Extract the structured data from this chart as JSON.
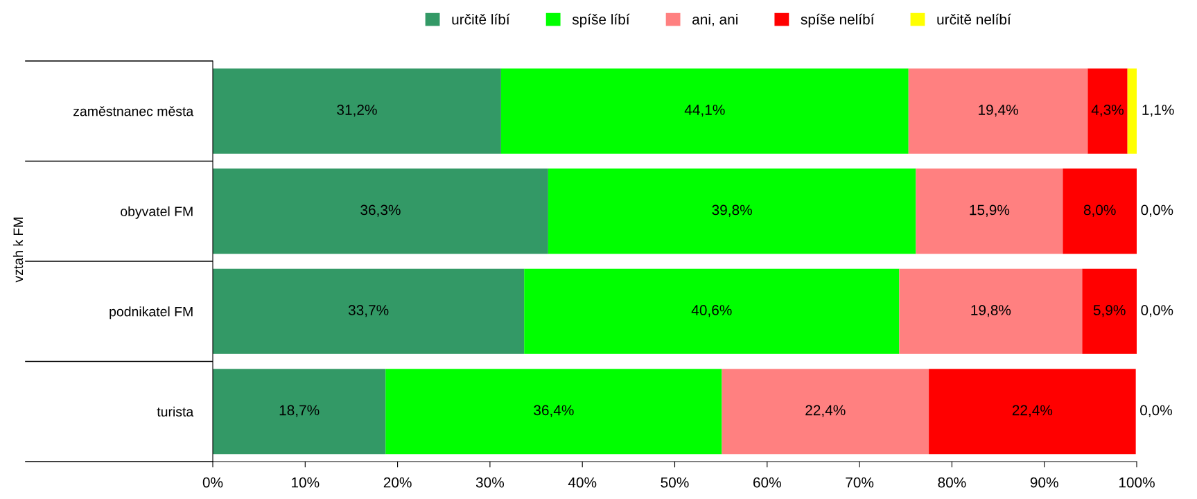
{
  "chart_data": {
    "type": "bar",
    "orientation": "horizontal",
    "stacked": true,
    "ylabel": "vztah k FM",
    "categories": [
      "zaměstnanec města",
      "obyvatel FM",
      "podnikatel FM",
      "turista"
    ],
    "series": [
      {
        "name": "určitě líbí",
        "color": "#339966",
        "values": [
          31.2,
          36.3,
          33.7,
          18.7
        ],
        "value_labels": [
          "31,2%",
          "36,3%",
          "33,7%",
          "18,7%"
        ]
      },
      {
        "name": "spíše líbí",
        "color": "#00ff00",
        "values": [
          44.1,
          39.8,
          40.6,
          36.4
        ],
        "value_labels": [
          "44,1%",
          "39,8%",
          "40,6%",
          "36,4%"
        ]
      },
      {
        "name": "ani, ani",
        "color": "#ff8080",
        "values": [
          19.4,
          15.9,
          19.8,
          22.4
        ],
        "value_labels": [
          "19,4%",
          "15,9%",
          "19,8%",
          "22,4%"
        ]
      },
      {
        "name": "spíše nelíbí",
        "color": "#ff0000",
        "values": [
          4.3,
          8.0,
          5.9,
          22.4
        ],
        "value_labels": [
          "4,3%",
          "8,0%",
          "5,9%",
          "22,4%"
        ]
      },
      {
        "name": "určitě nelíbí",
        "color": "#ffff00",
        "values": [
          1.1,
          0.0,
          0.0,
          0.0
        ],
        "value_labels": [
          "1,1%",
          "0,0%",
          "0,0%",
          "0,0%"
        ]
      }
    ],
    "xlim": [
      0,
      100
    ],
    "xticks": [
      {
        "value": 0,
        "label": "0%"
      },
      {
        "value": 10,
        "label": "10%"
      },
      {
        "value": 20,
        "label": "20%"
      },
      {
        "value": 30,
        "label": "30%"
      },
      {
        "value": 40,
        "label": "40%"
      },
      {
        "value": 50,
        "label": "50%"
      },
      {
        "value": 60,
        "label": "60%"
      },
      {
        "value": 70,
        "label": "70%"
      },
      {
        "value": 80,
        "label": "80%"
      },
      {
        "value": 90,
        "label": "90%"
      },
      {
        "value": 100,
        "label": "100%"
      }
    ],
    "grid": false,
    "legend": "top"
  }
}
